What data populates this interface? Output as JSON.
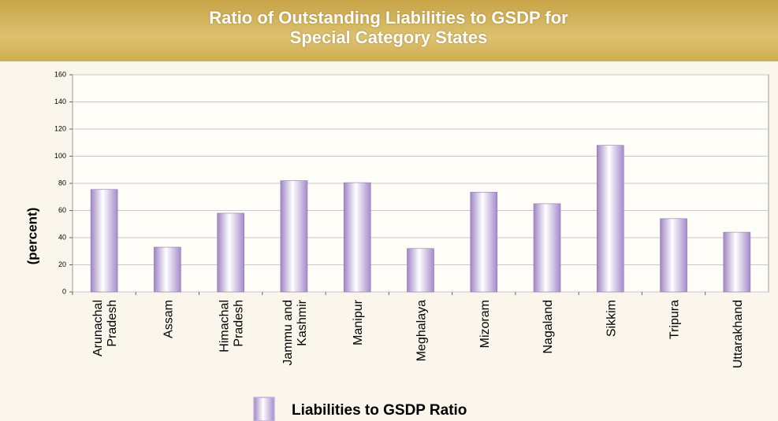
{
  "chart_data": {
    "type": "bar",
    "title": "Ratio of Outstanding Liabilities to GSDP for Special Category States",
    "y_label": "(percent)",
    "categories": [
      "Arunachal Pradesh",
      "Assam",
      "Himachal Pradesh",
      "Jammu and Kashmir",
      "Manipur",
      "Meghalaya",
      "Mizoram",
      "Nagaland",
      "Sikkim",
      "Tripura",
      "Uttarakhand"
    ],
    "series": [
      {
        "name": "Liabilities to GSDP Ratio",
        "color": "#c4b0dd",
        "values": [
          75.5,
          33,
          58,
          82,
          80.5,
          32,
          73.5,
          65,
          108,
          54,
          44
        ]
      }
    ],
    "ylim": [
      0,
      160
    ],
    "yticks": [
      0,
      20,
      40,
      60,
      80,
      100,
      120,
      140,
      160
    ],
    "grid": true,
    "legend": "bottom"
  }
}
